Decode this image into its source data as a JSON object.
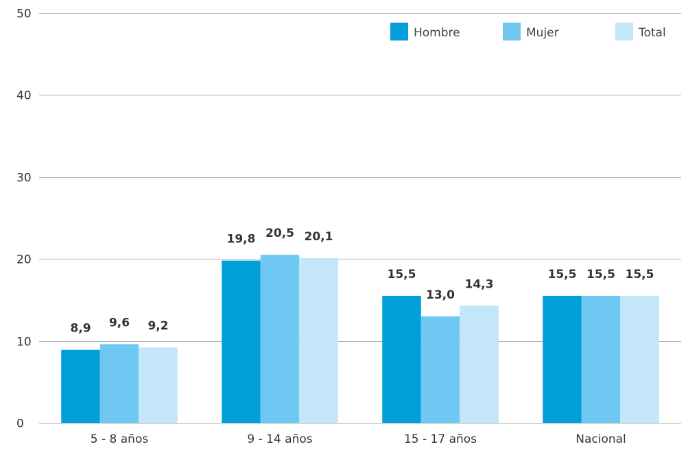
{
  "chart_data": {
    "type": "bar",
    "title": "",
    "xlabel": "",
    "ylabel": "",
    "ylim": [
      0,
      50
    ],
    "yticks": [
      0,
      10,
      20,
      30,
      40,
      50
    ],
    "grid": true,
    "legend_position": "top-right",
    "categories": [
      "5 - 8 años",
      "9 - 14 años",
      "15 - 17 años",
      "Nacional"
    ],
    "series": [
      {
        "name": "Hombre",
        "color": "#009fda",
        "values": [
          8.9,
          19.8,
          15.5,
          15.5
        ],
        "labels": [
          "8,9",
          "19,8",
          "15,5",
          "15,5"
        ]
      },
      {
        "name": "Mujer",
        "color": "#6ec8f2",
        "values": [
          9.6,
          20.5,
          13.0,
          15.5
        ],
        "labels": [
          "9,6",
          "20,5",
          "13,0",
          "15,5"
        ]
      },
      {
        "name": "Total",
        "color": "#c4e6f9",
        "values": [
          9.2,
          20.1,
          14.3,
          15.5
        ],
        "labels": [
          "9,2",
          "20,1",
          "14,3",
          "15,5"
        ]
      }
    ]
  }
}
